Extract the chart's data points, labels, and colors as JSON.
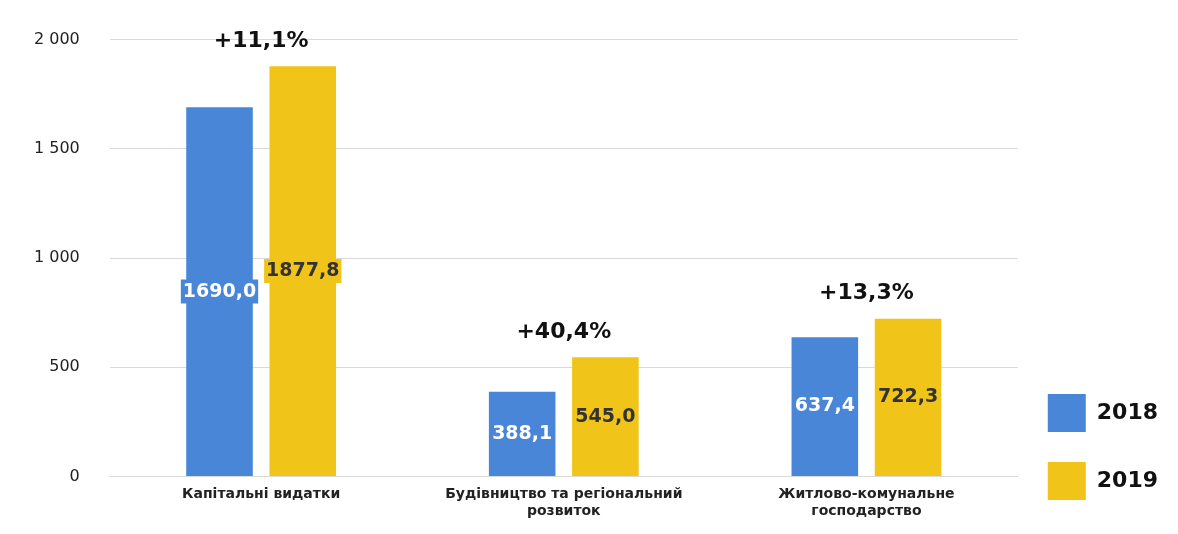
{
  "chart_data": {
    "type": "bar",
    "categories": [
      "Капітальні видатки",
      "Будівництво та регіональний розвиток",
      "Житлово-комунальне господарство"
    ],
    "series": [
      {
        "name": "2018",
        "color": "#4a86d8",
        "values": [
          1690.0,
          388.1,
          637.4
        ],
        "value_labels": [
          "1690,0",
          "388,1",
          "637,4"
        ]
      },
      {
        "name": "2019",
        "color": "#f0c419",
        "values": [
          1877.8,
          545.0,
          722.3
        ],
        "value_labels": [
          "1877,8",
          "545,0",
          "722,3"
        ]
      }
    ],
    "ylim": [
      0,
      2000
    ],
    "yticks": [
      0,
      500,
      {
        "value": 1000,
        "label": "1 000"
      },
      {
        "value": 1500,
        "label": "1 500"
      },
      {
        "value": 2000,
        "label": "2 000"
      }
    ],
    "grid": "y",
    "legend": "bottom right",
    "annotations": [
      "+11,1%",
      "+40,4%",
      "+13,3%"
    ]
  }
}
